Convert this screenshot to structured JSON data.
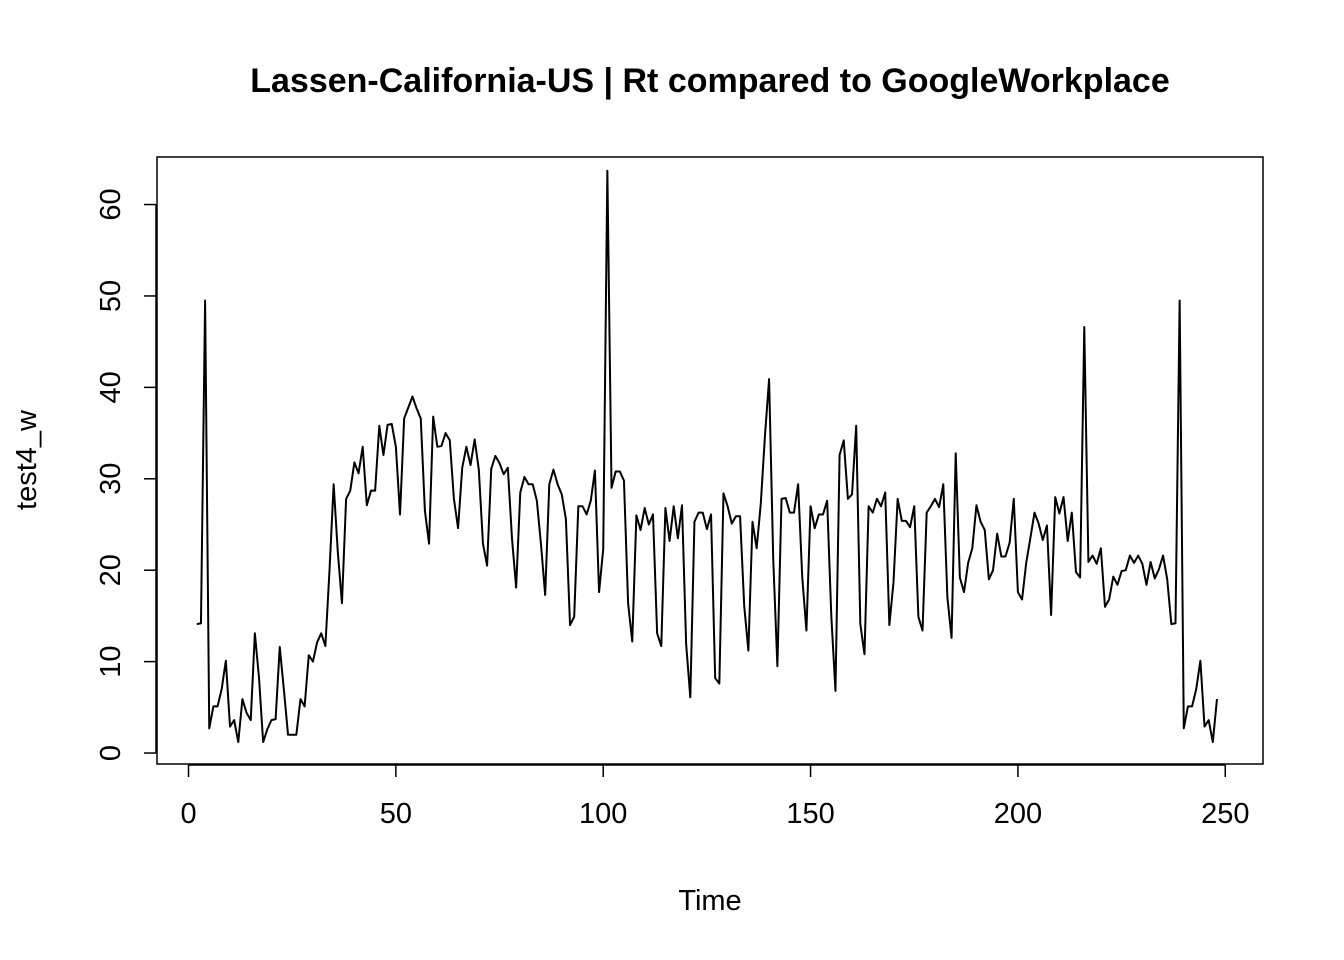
{
  "chart_data": {
    "type": "line",
    "title": "Lassen-California-US | Rt compared to GoogleWorkplace",
    "xlabel": "Time",
    "ylabel": "test4_w",
    "xlim": [
      -7.6,
      259.1
    ],
    "ylim": [
      -1.2,
      65.2
    ],
    "xticks": [
      0,
      50,
      100,
      150,
      200,
      250
    ],
    "yticks": [
      0,
      10,
      20,
      30,
      40,
      50,
      60
    ],
    "grid": false,
    "legend": "none",
    "line_color": "#000000",
    "x_start": 2,
    "values": [
      14.1,
      14.2,
      49.5,
      2.7,
      5.1,
      5.1,
      7.0,
      10.1,
      2.9,
      3.6,
      1.2,
      5.9,
      4.4,
      3.6,
      13.1,
      8.2,
      1.2,
      2.6,
      3.6,
      3.7,
      11.6,
      6.9,
      2.0,
      2.0,
      2.0,
      5.9,
      5.1,
      10.7,
      10.0,
      12.1,
      13.1,
      11.7,
      20.0,
      29.4,
      22.0,
      16.4,
      27.8,
      28.7,
      31.8,
      30.6,
      33.5,
      27.1,
      28.7,
      28.7,
      35.8,
      32.6,
      35.9,
      36.0,
      33.5,
      26.1,
      36.6,
      37.8,
      39.0,
      37.7,
      36.6,
      26.5,
      22.9,
      36.8,
      33.5,
      33.6,
      35.0,
      34.2,
      27.8,
      24.6,
      31.2,
      33.5,
      31.5,
      34.3,
      31.0,
      22.9,
      20.5,
      31.1,
      32.5,
      31.7,
      30.5,
      31.2,
      23.5,
      18.1,
      28.5,
      30.2,
      29.4,
      29.4,
      27.6,
      22.8,
      17.3,
      29.4,
      31.0,
      29.4,
      28.3,
      25.6,
      14.0,
      14.9,
      27.0,
      27.0,
      26.1,
      27.6,
      30.9,
      17.6,
      22.3,
      63.7,
      29.0,
      30.8,
      30.8,
      29.8,
      16.4,
      12.2,
      26.0,
      24.4,
      26.8,
      25.0,
      26.1,
      13.1,
      11.7,
      26.8,
      23.2,
      27.0,
      23.5,
      27.1,
      11.9,
      6.1,
      25.3,
      26.3,
      26.3,
      24.5,
      26.1,
      8.2,
      7.6,
      28.4,
      27.0,
      25.1,
      25.9,
      25.9,
      16.1,
      11.2,
      25.3,
      22.4,
      27.3,
      34.7,
      40.9,
      21.2,
      9.5,
      27.8,
      27.9,
      26.3,
      26.3,
      29.4,
      19.2,
      13.4,
      27.0,
      24.6,
      26.1,
      26.1,
      27.6,
      15.0,
      6.8,
      32.6,
      34.2,
      27.8,
      28.3,
      35.8,
      14.1,
      10.8,
      27.0,
      26.3,
      27.8,
      27.0,
      28.5,
      14.0,
      18.7,
      27.8,
      25.4,
      25.4,
      24.7,
      27.0,
      14.9,
      13.4,
      26.3,
      27.0,
      27.8,
      26.9,
      29.4,
      17.0,
      12.6,
      32.8,
      19.2,
      17.6,
      20.8,
      22.4,
      27.1,
      25.3,
      24.4,
      19.0,
      20.0,
      24.0,
      21.5,
      21.5,
      23.0,
      27.8,
      17.6,
      16.8,
      20.8,
      23.5,
      26.3,
      25.1,
      23.3,
      24.9,
      15.1,
      28.0,
      26.2,
      28.0,
      23.2,
      26.3,
      19.8,
      19.2,
      46.6,
      20.9,
      21.6,
      20.7,
      22.4,
      16.0,
      16.8,
      19.3,
      18.4,
      19.9,
      20.0,
      21.6,
      20.8,
      21.6,
      20.7,
      18.4,
      20.9,
      19.1,
      20.1,
      21.6,
      19.0,
      14.1,
      14.2,
      49.5,
      2.7,
      5.1,
      5.1,
      7.0,
      10.1,
      2.9,
      3.6,
      1.2,
      5.9
    ]
  }
}
